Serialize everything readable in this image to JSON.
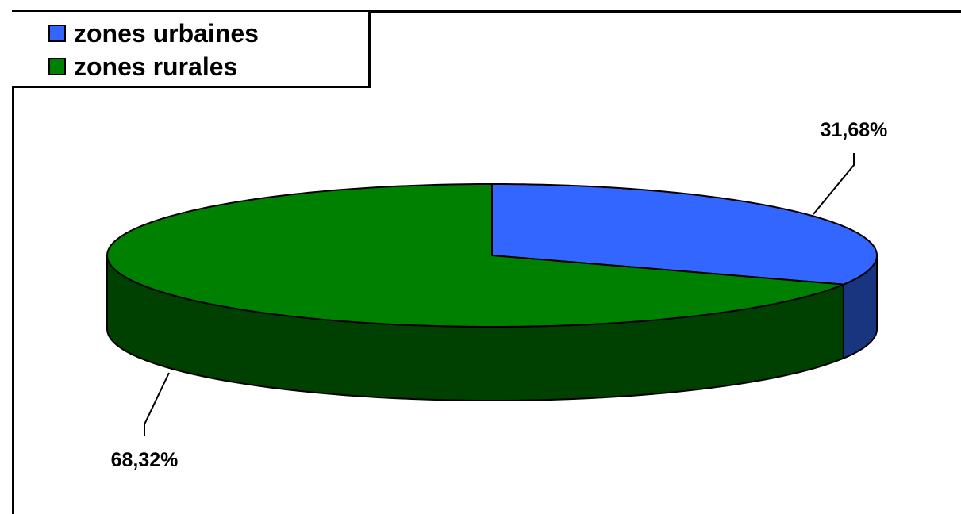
{
  "chart_data": {
    "type": "pie",
    "title": "",
    "categories": [
      "zones urbaines",
      "zones rurales"
    ],
    "values": [
      31.68,
      68.32
    ],
    "data_labels": [
      "31,68%",
      "68,32%"
    ],
    "colors": [
      "#3366FF",
      "#008000"
    ],
    "side_colors": [
      "#1A3580",
      "#004000"
    ],
    "legend": {
      "placement": "top-left",
      "items": [
        {
          "label": "zones urbaines",
          "color": "#3366FF"
        },
        {
          "label": "zones rurales",
          "color": "#008000"
        }
      ]
    },
    "style": "3d"
  }
}
